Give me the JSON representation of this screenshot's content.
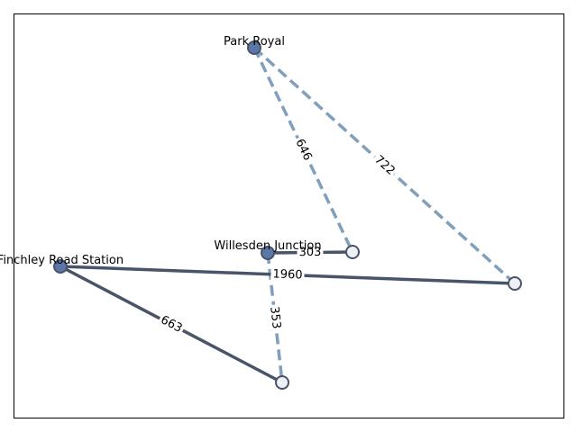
{
  "nodes": [
    {
      "id": "park-royal",
      "label": "Park Royal",
      "style": "filled"
    },
    {
      "id": "willesden-junction",
      "label": "Willesden Junction",
      "style": "filled"
    },
    {
      "id": "finchley-road-station",
      "label": "Finchley Road Station",
      "style": "filled"
    },
    {
      "id": "node-a",
      "label": "",
      "style": "hollow"
    },
    {
      "id": "node-b",
      "label": "",
      "style": "hollow"
    },
    {
      "id": "node-c",
      "label": "",
      "style": "hollow"
    }
  ],
  "edges": [
    {
      "id": "e-646",
      "from": "park-royal",
      "to": "node-a",
      "label": "646",
      "style": "dashed"
    },
    {
      "id": "e-722",
      "from": "park-royal",
      "to": "node-b",
      "label": "722",
      "style": "dashed"
    },
    {
      "id": "e-303",
      "from": "willesden-junction",
      "to": "node-a",
      "label": "303",
      "style": "solid"
    },
    {
      "id": "e-353",
      "from": "willesden-junction",
      "to": "node-c",
      "label": "353",
      "style": "dashed"
    },
    {
      "id": "e-1960",
      "from": "finchley-road-station",
      "to": "node-b",
      "label": "1960",
      "style": "solid"
    },
    {
      "id": "e-663",
      "from": "finchley-road-station",
      "to": "node-c",
      "label": "663",
      "style": "solid"
    }
  ],
  "colors": {
    "solid_edge": "#4a5468",
    "dashed_edge": "#7f9fbc",
    "filled_node": "#5b77a8",
    "hollow_node": "#eef0f6",
    "node_stroke": "#4a5468",
    "frame": "#000000"
  }
}
